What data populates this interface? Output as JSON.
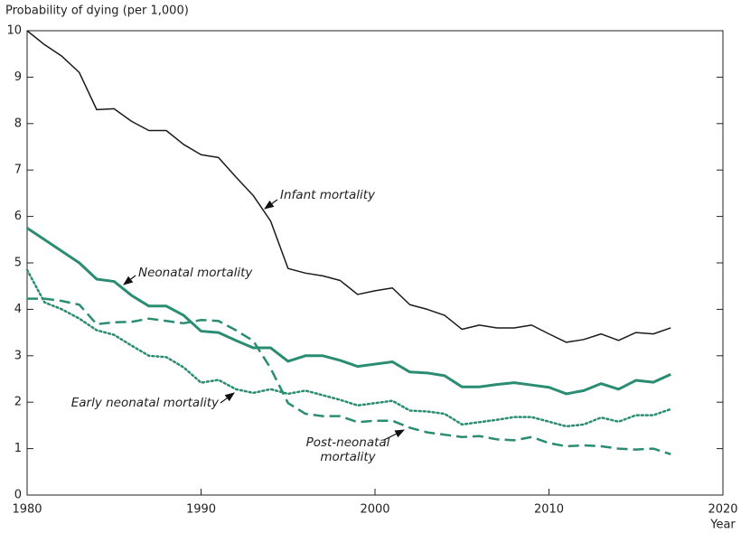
{
  "chart_data": {
    "type": "line",
    "y_label": "Probability of dying (per 1,000)",
    "x_label": "Year",
    "xlim": [
      1980,
      2020
    ],
    "xticks": [
      1980,
      1990,
      2000,
      2010,
      2020
    ],
    "ylim": [
      0,
      10
    ],
    "yticks": [
      0,
      1,
      2,
      3,
      4,
      5,
      6,
      7,
      8,
      9,
      10
    ],
    "grid": false,
    "x": [
      1980,
      1981,
      1982,
      1983,
      1984,
      1985,
      1986,
      1987,
      1988,
      1989,
      1990,
      1991,
      1992,
      1993,
      1994,
      1995,
      1996,
      1997,
      1998,
      1999,
      2000,
      2001,
      2002,
      2003,
      2004,
      2005,
      2006,
      2007,
      2008,
      2009,
      2010,
      2011,
      2012,
      2013,
      2014,
      2015,
      2016,
      2017
    ],
    "series": [
      {
        "name": "Infant mortality",
        "color": "#1a1a1a",
        "width": 1.5,
        "dash": "solid",
        "values": [
          10.0,
          9.7,
          9.45,
          9.1,
          8.3,
          8.32,
          8.05,
          7.85,
          7.85,
          7.55,
          7.33,
          7.27,
          6.85,
          6.45,
          5.9,
          4.88,
          4.78,
          4.72,
          4.62,
          4.32,
          4.4,
          4.46,
          4.1,
          4.0,
          3.87,
          3.57,
          3.66,
          3.6,
          3.6,
          3.66,
          3.47,
          3.29,
          3.35,
          3.47,
          3.33,
          3.5,
          3.47,
          3.6
        ]
      },
      {
        "name": "Neonatal mortality",
        "color": "#2a8c72",
        "width": 3,
        "dash": "solid",
        "values": [
          5.75,
          5.5,
          5.25,
          5.0,
          4.65,
          4.6,
          4.3,
          4.07,
          4.07,
          3.87,
          3.53,
          3.5,
          3.33,
          3.17,
          3.17,
          2.88,
          3.0,
          3.0,
          2.9,
          2.77,
          2.82,
          2.87,
          2.65,
          2.63,
          2.57,
          2.33,
          2.33,
          2.38,
          2.42,
          2.37,
          2.32,
          2.18,
          2.25,
          2.4,
          2.28,
          2.47,
          2.43,
          2.6
        ]
      },
      {
        "name": "Early neonatal mortality",
        "color": "#2a8c72",
        "width": 2.5,
        "dash": "dotted",
        "values": [
          4.85,
          4.15,
          4.0,
          3.8,
          3.55,
          3.45,
          3.22,
          3.0,
          2.97,
          2.75,
          2.42,
          2.48,
          2.28,
          2.2,
          2.28,
          2.18,
          2.25,
          2.15,
          2.05,
          1.93,
          1.98,
          2.03,
          1.82,
          1.8,
          1.75,
          1.52,
          1.57,
          1.62,
          1.68,
          1.68,
          1.58,
          1.48,
          1.52,
          1.67,
          1.58,
          1.72,
          1.72,
          1.85
        ]
      },
      {
        "name": "Post-neonatal mortality",
        "color": "#2a8c72",
        "width": 2.5,
        "dash": "dashed",
        "values": [
          4.23,
          4.23,
          4.18,
          4.1,
          3.68,
          3.72,
          3.73,
          3.8,
          3.75,
          3.7,
          3.77,
          3.75,
          3.55,
          3.32,
          2.73,
          1.98,
          1.75,
          1.7,
          1.7,
          1.57,
          1.6,
          1.6,
          1.45,
          1.35,
          1.3,
          1.25,
          1.27,
          1.2,
          1.18,
          1.25,
          1.12,
          1.05,
          1.07,
          1.05,
          1.0,
          0.98,
          1.0,
          0.88
        ]
      }
    ]
  }
}
